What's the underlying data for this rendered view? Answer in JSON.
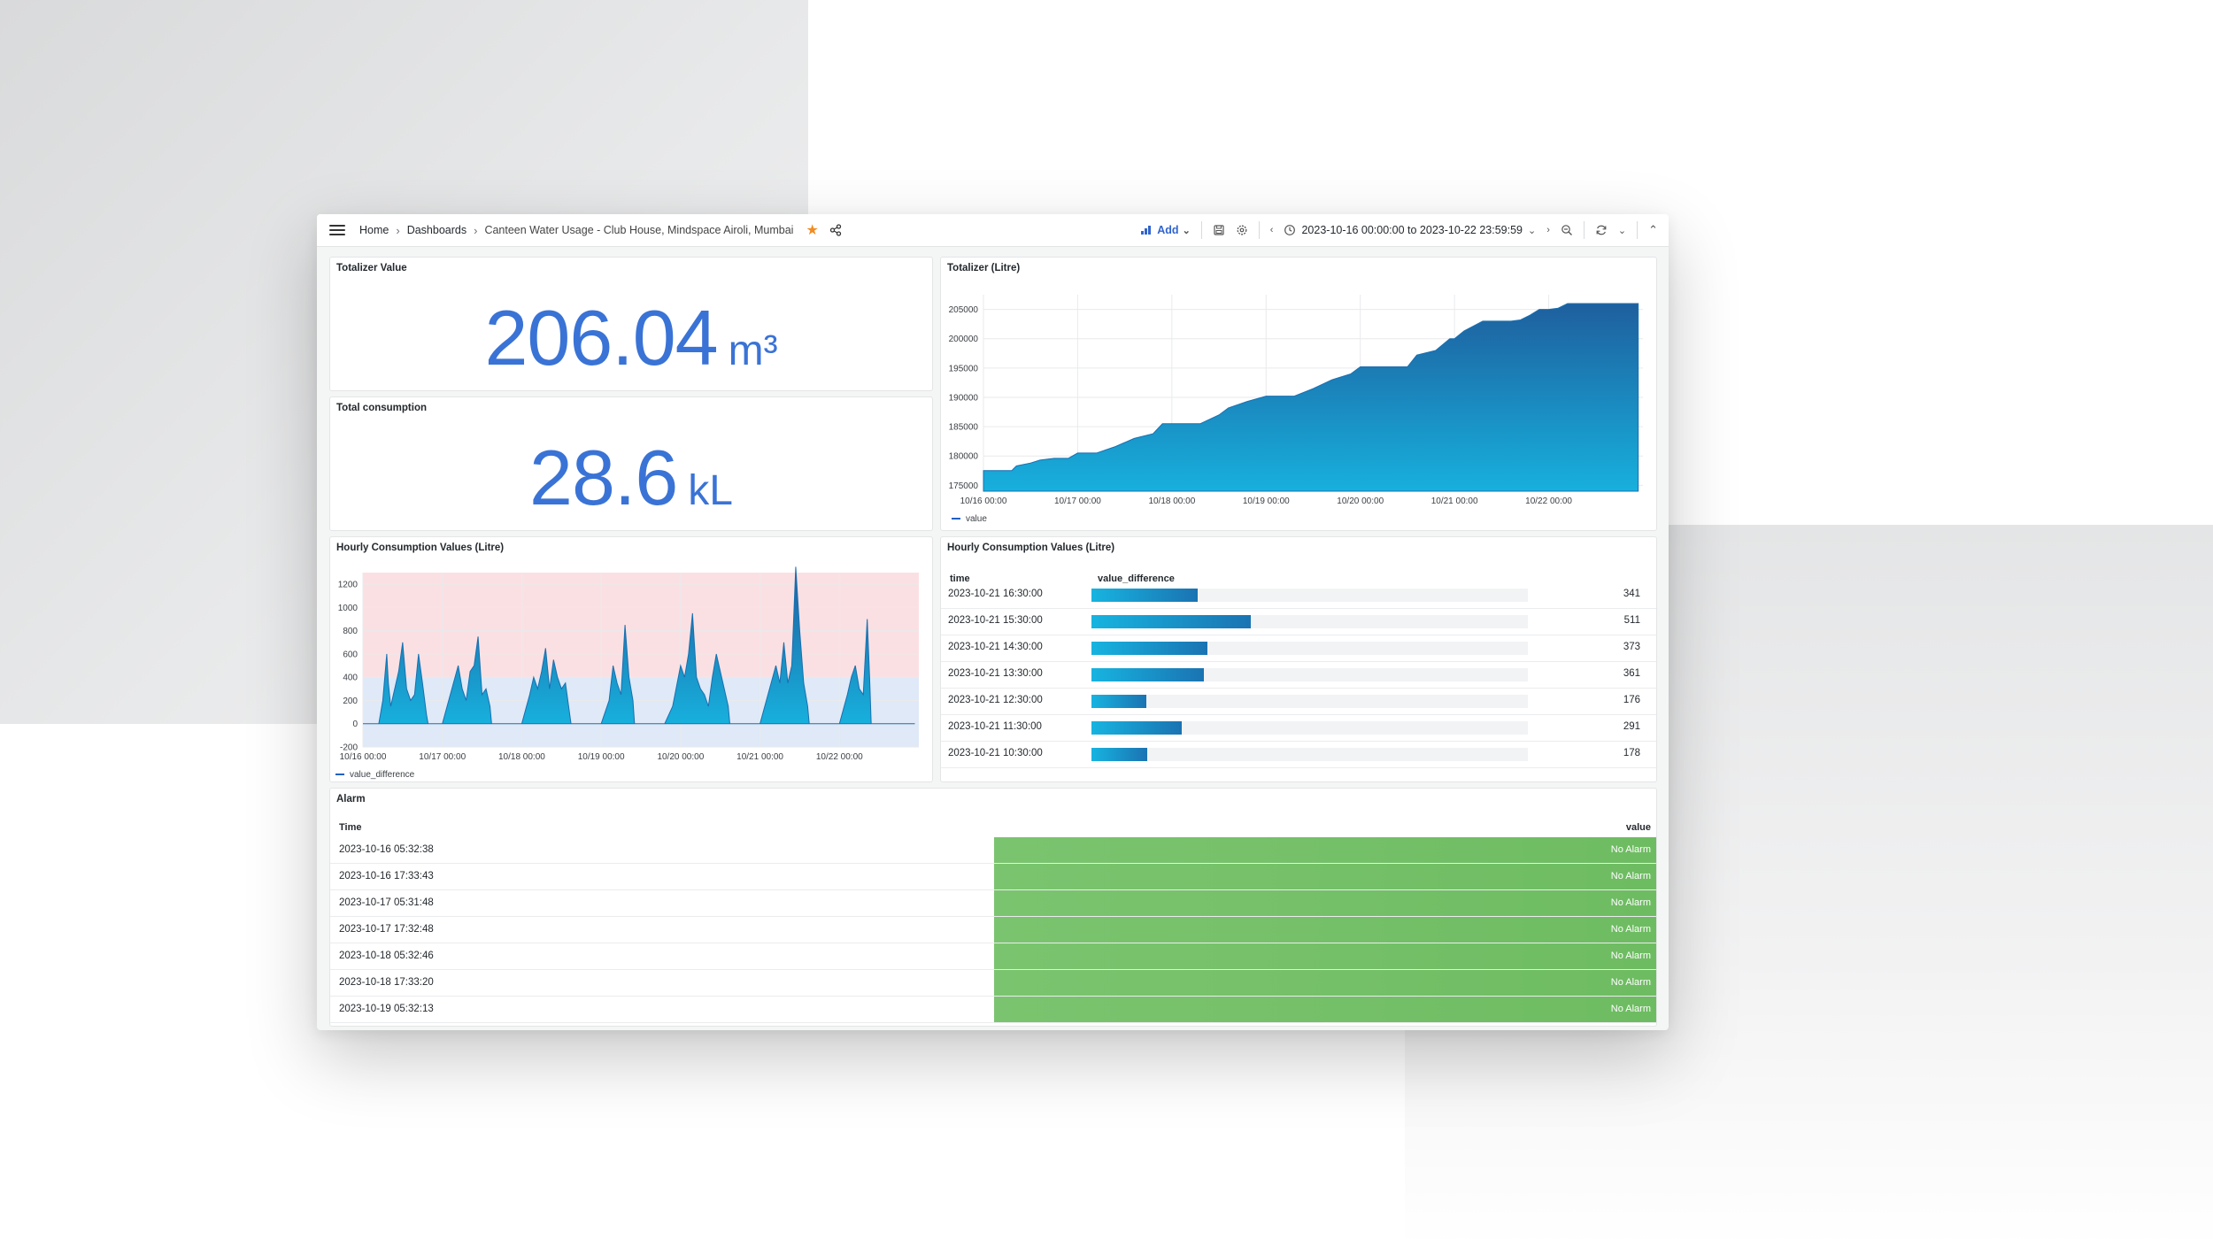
{
  "topbar": {
    "breadcrumb": [
      "Home",
      "Dashboards",
      "Canteen Water Usage - Club House, Mindspace Airoli, Mumbai"
    ],
    "add_label": "Add",
    "time_range": "2023-10-16 00:00:00 to 2023-10-22 23:59:59",
    "accent_color": "#3164cf",
    "star_color": "#f08c23"
  },
  "totalizer_value": {
    "title": "Totalizer Value",
    "value": "206.04",
    "unit": "m³"
  },
  "total_consumption": {
    "title": "Total consumption",
    "value": "28.6",
    "unit": "kL"
  },
  "totalizer_chart": {
    "title": "Totalizer (Litre)",
    "legend": "value",
    "chart_data": {
      "type": "area",
      "x_ticks": [
        "10/16 00:00",
        "10/17 00:00",
        "10/18 00:00",
        "10/19 00:00",
        "10/20 00:00",
        "10/21 00:00",
        "10/22 00:00"
      ],
      "y_ticks": [
        175000,
        180000,
        185000,
        190000,
        195000,
        200000,
        205000
      ],
      "ylim": [
        174000,
        207500
      ],
      "grid": true,
      "legend_position": "bottom-left",
      "series": [
        {
          "name": "value",
          "x": [
            0,
            0.3,
            0.35,
            0.5,
            0.6,
            0.75,
            0.9,
            1.0,
            1.2,
            1.4,
            1.6,
            1.8,
            1.9,
            2.3,
            2.5,
            2.6,
            2.8,
            3.0,
            3.3,
            3.5,
            3.7,
            3.9,
            4.0,
            4.5,
            4.6,
            4.8,
            4.95,
            5.0,
            5.1,
            5.3,
            5.6,
            5.7,
            5.8,
            5.9,
            6.0,
            6.1,
            6.2,
            6.4,
            6.95
          ],
          "y": [
            177500,
            177500,
            178300,
            178800,
            179300,
            179600,
            179600,
            180500,
            180500,
            181600,
            183000,
            183800,
            185500,
            185500,
            187000,
            188200,
            189300,
            190200,
            190200,
            191500,
            193000,
            194000,
            195200,
            195200,
            197200,
            198000,
            200000,
            200000,
            201300,
            203000,
            203000,
            203200,
            204000,
            205000,
            205000,
            205200,
            206000,
            206000,
            206000
          ]
        }
      ]
    }
  },
  "hourly_chart": {
    "title": "Hourly Consumption Values (Litre)",
    "legend": "value_difference",
    "chart_data": {
      "type": "area",
      "x_ticks": [
        "10/16 00:00",
        "10/17 00:00",
        "10/18 00:00",
        "10/19 00:00",
        "10/20 00:00",
        "10/21 00:00",
        "10/22 00:00"
      ],
      "y_ticks": [
        -200,
        0,
        200,
        400,
        600,
        800,
        1000,
        1200
      ],
      "ylim": [
        -200,
        1300
      ],
      "threshold_bands": [
        {
          "from": -200,
          "to": 400,
          "color": "#dfe9f7"
        },
        {
          "from": 400,
          "to": 1300,
          "color": "#fbe0e3"
        }
      ],
      "series": [
        {
          "name": "value_difference",
          "x": [
            0,
            0.2,
            0.25,
            0.3,
            0.32,
            0.35,
            0.4,
            0.45,
            0.5,
            0.55,
            0.6,
            0.65,
            0.7,
            0.75,
            0.8,
            0.82,
            1.0,
            1.1,
            1.2,
            1.25,
            1.3,
            1.35,
            1.4,
            1.45,
            1.5,
            1.55,
            1.6,
            1.62,
            1.8,
            2.0,
            2.1,
            2.15,
            2.2,
            2.25,
            2.3,
            2.35,
            2.4,
            2.45,
            2.5,
            2.55,
            2.6,
            2.62,
            2.8,
            3.0,
            3.1,
            3.15,
            3.2,
            3.25,
            3.3,
            3.35,
            3.4,
            3.42,
            3.6,
            3.8,
            3.9,
            4.0,
            4.05,
            4.1,
            4.15,
            4.2,
            4.25,
            4.3,
            4.35,
            4.4,
            4.45,
            4.5,
            4.55,
            4.6,
            4.62,
            4.8,
            5.0,
            5.1,
            5.2,
            5.25,
            5.3,
            5.35,
            5.4,
            5.45,
            5.5,
            5.55,
            5.6,
            5.62,
            5.8,
            6.0,
            6.1,
            6.15,
            6.2,
            6.25,
            6.3,
            6.35,
            6.38,
            6.4,
            6.6,
            6.9,
            6.95
          ],
          "y": [
            0,
            0,
            200,
            600,
            350,
            150,
            300,
            450,
            700,
            300,
            200,
            250,
            600,
            350,
            80,
            0,
            0,
            250,
            500,
            300,
            200,
            450,
            500,
            750,
            250,
            300,
            150,
            0,
            0,
            0,
            250,
            400,
            300,
            450,
            650,
            300,
            550,
            400,
            300,
            350,
            100,
            0,
            0,
            0,
            200,
            500,
            350,
            250,
            850,
            400,
            200,
            0,
            0,
            0,
            150,
            500,
            400,
            600,
            950,
            400,
            300,
            250,
            150,
            400,
            600,
            450,
            300,
            150,
            0,
            0,
            0,
            250,
            500,
            350,
            700,
            350,
            500,
            1350,
            800,
            350,
            150,
            0,
            0,
            0,
            250,
            400,
            500,
            300,
            250,
            900,
            400,
            0,
            0,
            0,
            0
          ]
        }
      ]
    }
  },
  "hourly_table": {
    "title": "Hourly Consumption Values (Litre)",
    "columns": [
      "time",
      "value_difference"
    ],
    "max": 1400,
    "rows": [
      {
        "time": "2023-10-21 16:30:00",
        "value": 341
      },
      {
        "time": "2023-10-21 15:30:00",
        "value": 511
      },
      {
        "time": "2023-10-21 14:30:00",
        "value": 373
      },
      {
        "time": "2023-10-21 13:30:00",
        "value": 361
      },
      {
        "time": "2023-10-21 12:30:00",
        "value": 176
      },
      {
        "time": "2023-10-21 11:30:00",
        "value": 291
      },
      {
        "time": "2023-10-21 10:30:00",
        "value": 178
      }
    ]
  },
  "alarm": {
    "title": "Alarm",
    "columns": [
      "Time",
      "value"
    ],
    "status_color": "#73bf69",
    "rows": [
      {
        "time": "2023-10-16 05:32:38",
        "value": "No Alarm"
      },
      {
        "time": "2023-10-16 17:33:43",
        "value": "No Alarm"
      },
      {
        "time": "2023-10-17 05:31:48",
        "value": "No Alarm"
      },
      {
        "time": "2023-10-17 17:32:48",
        "value": "No Alarm"
      },
      {
        "time": "2023-10-18 05:32:46",
        "value": "No Alarm"
      },
      {
        "time": "2023-10-18 17:33:20",
        "value": "No Alarm"
      },
      {
        "time": "2023-10-19 05:32:13",
        "value": "No Alarm"
      }
    ]
  }
}
